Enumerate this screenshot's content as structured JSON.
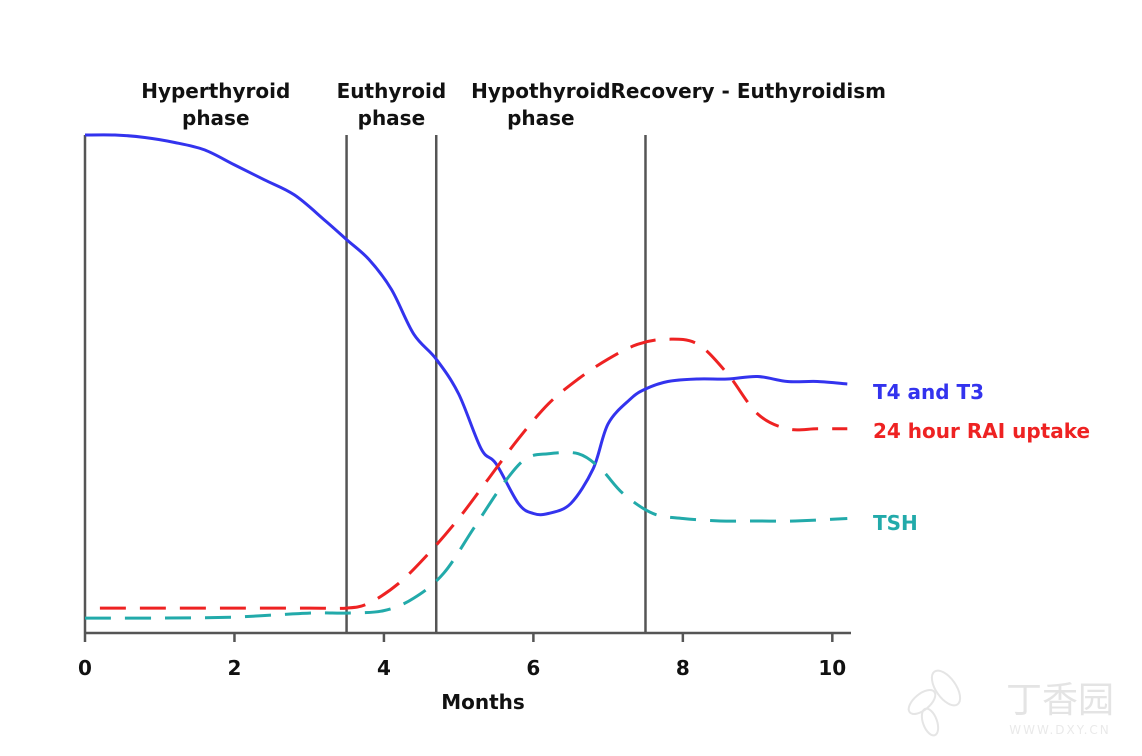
{
  "chart_data": {
    "type": "line",
    "xlabel": "Months",
    "xlim": [
      0,
      10.25
    ],
    "ylim": [
      0,
      100
    ],
    "x_ticks": [
      0,
      2,
      4,
      6,
      8,
      10
    ],
    "phases": [
      {
        "lines": [
          "Hyperthyroid",
          "phase"
        ],
        "start": 0,
        "end": 3.5
      },
      {
        "lines": [
          "Euthyroid",
          "phase"
        ],
        "start": 3.5,
        "end": 4.7
      },
      {
        "lines": [
          "Hypothyroid",
          "phase"
        ],
        "start": 4.7,
        "end": 7.5
      },
      {
        "lines": [
          "Recovery - Euthyroidism"
        ],
        "start": 7.5,
        "end": 10.25
      }
    ],
    "phase_boundaries": [
      0,
      3.5,
      4.7,
      7.5
    ],
    "series": [
      {
        "name": "T4 and T3",
        "color": "#3333ee",
        "dashed": false,
        "points": [
          [
            0,
            100
          ],
          [
            0.4,
            100
          ],
          [
            0.8,
            99.5
          ],
          [
            1.2,
            98.5
          ],
          [
            1.6,
            97
          ],
          [
            2,
            94
          ],
          [
            2.4,
            91
          ],
          [
            2.8,
            88
          ],
          [
            3.2,
            83
          ],
          [
            3.5,
            79
          ],
          [
            3.8,
            75
          ],
          [
            4.1,
            69
          ],
          [
            4.4,
            60
          ],
          [
            4.7,
            55
          ],
          [
            5.0,
            48
          ],
          [
            5.3,
            37
          ],
          [
            5.5,
            34
          ],
          [
            5.8,
            26
          ],
          [
            6.0,
            24
          ],
          [
            6.2,
            24
          ],
          [
            6.5,
            26
          ],
          [
            6.8,
            33
          ],
          [
            7.0,
            42
          ],
          [
            7.3,
            47
          ],
          [
            7.5,
            49
          ],
          [
            7.8,
            50.5
          ],
          [
            8.2,
            51
          ],
          [
            8.6,
            51
          ],
          [
            9.0,
            51.5
          ],
          [
            9.4,
            50.5
          ],
          [
            9.8,
            50.5
          ],
          [
            10.2,
            50
          ]
        ]
      },
      {
        "name": "24 hour RAI uptake",
        "color": "#ee2222",
        "dashed": true,
        "points": [
          [
            0.2,
            5
          ],
          [
            1,
            5
          ],
          [
            2,
            5
          ],
          [
            3,
            5
          ],
          [
            3.5,
            5
          ],
          [
            3.8,
            6
          ],
          [
            4.2,
            10
          ],
          [
            4.6,
            16
          ],
          [
            5.0,
            23
          ],
          [
            5.4,
            31
          ],
          [
            5.8,
            39
          ],
          [
            6.2,
            46
          ],
          [
            6.6,
            51
          ],
          [
            7.0,
            55
          ],
          [
            7.4,
            58
          ],
          [
            7.8,
            59
          ],
          [
            8.2,
            58
          ],
          [
            8.6,
            52
          ],
          [
            9.0,
            44
          ],
          [
            9.4,
            41
          ],
          [
            9.8,
            41
          ],
          [
            10.2,
            41
          ]
        ]
      },
      {
        "name": "TSH",
        "color": "#22aaaa",
        "dashed": true,
        "points": [
          [
            0,
            3
          ],
          [
            1,
            3
          ],
          [
            2,
            3.2
          ],
          [
            3,
            4
          ],
          [
            3.5,
            4
          ],
          [
            4.0,
            4.5
          ],
          [
            4.4,
            7
          ],
          [
            4.8,
            12
          ],
          [
            5.2,
            21
          ],
          [
            5.6,
            30
          ],
          [
            5.9,
            35
          ],
          [
            6.2,
            36
          ],
          [
            6.6,
            36
          ],
          [
            6.9,
            33
          ],
          [
            7.2,
            28
          ],
          [
            7.6,
            24
          ],
          [
            8.0,
            23
          ],
          [
            8.5,
            22.5
          ],
          [
            9.0,
            22.5
          ],
          [
            9.5,
            22.5
          ],
          [
            10.2,
            23
          ]
        ]
      }
    ]
  },
  "watermark": {
    "brand": "丁香园",
    "url": "WWW.DXY.CN"
  }
}
